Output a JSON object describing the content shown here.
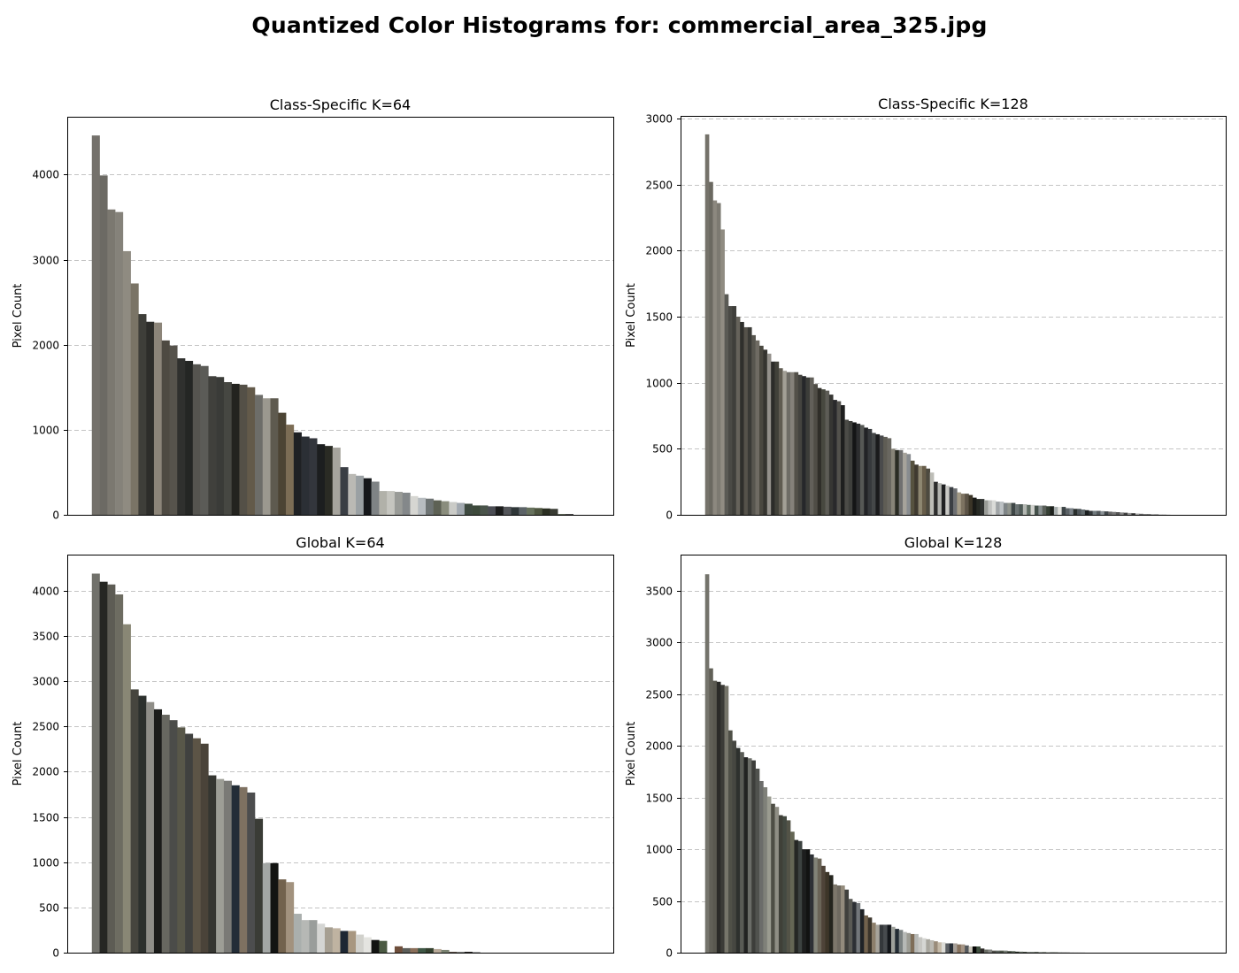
{
  "figure": {
    "title": "Quantized Color Histograms for: commercial_area_325.jpg"
  },
  "chart_data": [
    {
      "type": "bar",
      "title": "Class-Specific K=64",
      "xlabel": "",
      "ylabel": "Pixel Count",
      "ylim": [
        0,
        4680
      ],
      "yticks": [
        0,
        1000,
        2000,
        3000,
        4000
      ],
      "grid": true,
      "values": [
        4460,
        3990,
        3590,
        3560,
        3100,
        2720,
        2360,
        2270,
        2260,
        2050,
        1990,
        1840,
        1810,
        1770,
        1750,
        1630,
        1620,
        1560,
        1540,
        1530,
        1500,
        1410,
        1370,
        1370,
        1200,
        1060,
        970,
        920,
        900,
        830,
        810,
        790,
        560,
        480,
        460,
        430,
        390,
        280,
        280,
        270,
        260,
        220,
        200,
        190,
        170,
        160,
        150,
        140,
        130,
        110,
        110,
        100,
        100,
        95,
        90,
        90,
        85,
        80,
        75,
        70,
        10,
        10,
        0,
        0
      ],
      "colors": [
        "#74716b",
        "#6c6a64",
        "#7b7870",
        "#85827a",
        "#8f8b81",
        "#7a7466",
        "#3e3e39",
        "#2d2d2a",
        "#8c8579",
        "#4e4a42",
        "#56534c",
        "#2f302e",
        "#242624",
        "#55544f",
        "#5b5b57",
        "#40403c",
        "#3a3b38",
        "#464742",
        "#23231f",
        "#545047",
        "#635a4a",
        "#6d6d69",
        "#9b988f",
        "#5e5a4f",
        "#4c4434",
        "#7c6d55",
        "#1f2124",
        "#2b2f35",
        "#33363c",
        "#1c1e1f",
        "#2a2b24",
        "#a6a49d",
        "#3a3e44",
        "#bab9b4",
        "#9aa0a3",
        "#15171a",
        "#7f8385",
        "#b1b1a9",
        "#c5c5bf",
        "#999b97",
        "#84888a",
        "#d6d6d2",
        "#b7bcc0",
        "#6e7474",
        "#5d6154",
        "#8a8d7d",
        "#cacbc7",
        "#a2a9b0",
        "#3e4a40",
        "#3d4a3b",
        "#4a544b",
        "#4b4d54",
        "#1c1d1d",
        "#54565a",
        "#2f3638",
        "#5c6367",
        "#67725d",
        "#4d553f",
        "#2b2f22",
        "#393b33",
        "#5a6252",
        "#444",
        "#555",
        "#666"
      ]
    },
    {
      "type": "bar",
      "title": "Class-Specific K=128",
      "xlabel": "",
      "ylabel": "Pixel Count",
      "ylim": [
        0,
        3020
      ],
      "yticks": [
        0,
        500,
        1000,
        1500,
        2000,
        2500,
        3000
      ],
      "grid": true,
      "values": [
        2880,
        2520,
        2380,
        2360,
        2160,
        1670,
        1580,
        1580,
        1500,
        1460,
        1420,
        1420,
        1360,
        1320,
        1280,
        1250,
        1220,
        1160,
        1160,
        1110,
        1090,
        1080,
        1080,
        1080,
        1060,
        1050,
        1040,
        1040,
        990,
        960,
        950,
        940,
        910,
        870,
        860,
        830,
        720,
        710,
        700,
        690,
        680,
        660,
        650,
        620,
        610,
        600,
        590,
        580,
        500,
        490,
        490,
        470,
        460,
        410,
        380,
        370,
        370,
        350,
        320,
        250,
        240,
        230,
        220,
        210,
        200,
        170,
        160,
        160,
        150,
        130,
        120,
        120,
        110,
        110,
        110,
        100,
        100,
        90,
        90,
        90,
        80,
        80,
        80,
        75,
        75,
        70,
        70,
        70,
        65,
        65,
        60,
        60,
        60,
        50,
        50,
        45,
        45,
        40,
        35,
        30,
        30,
        30,
        28,
        26,
        24,
        22,
        20,
        18,
        16,
        14,
        12,
        10,
        8,
        6,
        5,
        4,
        3,
        2,
        1,
        1,
        0,
        0,
        0,
        0,
        0,
        0,
        0,
        0
      ],
      "colors": [
        "#75726a",
        "#6b6961",
        "#8c887f",
        "#7d7a72",
        "#908c82",
        "#5a5a54",
        "#4a4a45",
        "#3f3f3b",
        "#66635b",
        "#2f2f2c",
        "#55524a",
        "#3a3a36",
        "#58564f",
        "#6f6b63",
        "#49473f",
        "#35342f",
        "#93908a",
        "#2c2c29",
        "#414139",
        "#5f5b51",
        "#a29f96",
        "#6e6c66",
        "#85817a",
        "#535049",
        "#44433f",
        "#26272a",
        "#3c3d39",
        "#62605a",
        "#4f4d46",
        "#2f2e29",
        "#47483f",
        "#5d5c56",
        "#363633",
        "#29292b",
        "#52514c",
        "#1e1f1f",
        "#4b4b47",
        "#3e3f3c",
        "#141516",
        "#2c2d2f",
        "#565855",
        "#222326",
        "#36393c",
        "#444748",
        "#1a1b1c",
        "#4a4b4c",
        "#5f5d55",
        "#696760",
        "#878478",
        "#2a2c24",
        "#707070",
        "#a6a39b",
        "#888c90",
        "#56523f",
        "#3f3a30",
        "#8e8771",
        "#675d4a",
        "#4d4a40",
        "#bdbdb7",
        "#2d2d2d",
        "#b3b4b0",
        "#1f2022",
        "#c9c9c5",
        "#3b3f44",
        "#6d6f72",
        "#a39a86",
        "#7d7361",
        "#5b5346",
        "#3b3527",
        "#191a17",
        "#272a24",
        "#313332",
        "#9a9c98",
        "#c1c2c0",
        "#dadbd8",
        "#a0a4a6",
        "#bcc1c4",
        "#7f8587",
        "#90948d",
        "#3f4747",
        "#6b7373",
        "#4f5a57",
        "#b3b7b2",
        "#5f6c62",
        "#cfd0cc",
        "#44504a",
        "#889090",
        "#595f59",
        "#364035",
        "#1d211d",
        "#a7adad",
        "#e3e3de",
        "#3d4547",
        "#5b6266",
        "#7b8288",
        "#292e2c",
        "#4d5458",
        "#616a6d",
        "#1b1f20",
        "#34393b",
        "#717a7d",
        "#52585b",
        "#8b9296",
        "#3f4548",
        "#666",
        "#777",
        "#555",
        "#888",
        "#444",
        "#999",
        "#333",
        "#aaa",
        "#666",
        "#777",
        "#555",
        "#888",
        "#444",
        "#999",
        "#333",
        "#aaa",
        "#666",
        "#777",
        "#555",
        "#888",
        "#444",
        "#999",
        "#333",
        "#aaa"
      ]
    },
    {
      "type": "bar",
      "title": "Global K=64",
      "xlabel": "",
      "ylabel": "Pixel Count",
      "ylim": [
        0,
        4400
      ],
      "yticks": [
        0,
        500,
        1000,
        1500,
        2000,
        2500,
        3000,
        3500,
        4000
      ],
      "grid": true,
      "values": [
        4190,
        4100,
        4070,
        3960,
        3630,
        2910,
        2840,
        2770,
        2690,
        2630,
        2570,
        2490,
        2420,
        2370,
        2310,
        1960,
        1920,
        1900,
        1850,
        1830,
        1770,
        1480,
        990,
        990,
        810,
        780,
        430,
        360,
        360,
        320,
        280,
        270,
        240,
        240,
        200,
        170,
        140,
        130,
        0,
        70,
        50,
        50,
        50,
        50,
        40,
        30,
        10,
        10,
        10,
        5,
        0,
        0,
        0,
        0,
        0,
        0,
        0,
        0,
        0,
        0,
        0,
        0,
        0,
        0
      ],
      "colors": [
        "#71716b",
        "#262723",
        "#5d5c54",
        "#6d6c61",
        "#898775",
        "#46453e",
        "#2c302d",
        "#8f8e88",
        "#1b1c1a",
        "#676760",
        "#4b4c49",
        "#585749",
        "#40413f",
        "#5c5446",
        "#4a4339",
        "#353631",
        "#9d9e96",
        "#7a7a76",
        "#232d37",
        "#7e7161",
        "#4c4d4e",
        "#3a3c36",
        "#a3a7a5",
        "#121412",
        "#72624d",
        "#a2927e",
        "#aaafad",
        "#b6b8b5",
        "#999d9b",
        "#d4d5d3",
        "#a69f92",
        "#bfb3a1",
        "#1d2733",
        "#a89780",
        "#d1d1cc",
        "#e4e4e0",
        "#121412",
        "#4b5a43",
        "#ffffff",
        "#6e4e3b",
        "#5c5e59",
        "#8a6f5a",
        "#3f5745",
        "#33402e",
        "#b8aa99",
        "#7a8271",
        "#62554d",
        "#8a8b88",
        "#2a2826",
        "#5b5e5f",
        "#ffffff",
        "#ffffff",
        "#ffffff",
        "#ffffff",
        "#ffffff",
        "#ffffff",
        "#ffffff",
        "#ffffff",
        "#ffffff",
        "#ffffff",
        "#ffffff",
        "#ffffff",
        "#ffffff",
        "#ffffff"
      ]
    },
    {
      "type": "bar",
      "title": "Global K=128",
      "xlabel": "",
      "ylabel": "Pixel Count",
      "ylim": [
        0,
        3850
      ],
      "yticks": [
        0,
        500,
        1000,
        1500,
        2000,
        2500,
        3000,
        3500
      ],
      "grid": true,
      "values": [
        3660,
        2750,
        2630,
        2620,
        2590,
        2580,
        2150,
        2050,
        1980,
        1940,
        1890,
        1880,
        1860,
        1780,
        1660,
        1600,
        1510,
        1440,
        1410,
        1330,
        1320,
        1280,
        1170,
        1090,
        1080,
        1000,
        1000,
        950,
        920,
        910,
        840,
        780,
        750,
        660,
        650,
        650,
        610,
        520,
        490,
        480,
        420,
        360,
        340,
        290,
        270,
        270,
        270,
        270,
        250,
        230,
        220,
        200,
        190,
        180,
        180,
        150,
        140,
        130,
        120,
        110,
        100,
        100,
        90,
        90,
        90,
        80,
        80,
        70,
        60,
        60,
        60,
        40,
        30,
        30,
        20,
        20,
        20,
        20,
        15,
        15,
        10,
        10,
        8,
        8,
        6,
        6,
        5,
        5,
        4,
        4,
        3,
        3,
        2,
        2,
        1,
        1,
        1,
        1,
        0,
        0,
        0,
        0,
        0,
        0,
        0,
        0,
        0,
        0,
        0,
        0,
        0,
        0,
        0,
        0,
        0,
        0,
        0,
        0,
        0,
        0,
        0,
        0,
        0,
        0,
        0,
        0,
        0,
        0
      ],
      "colors": [
        "#74736b",
        "#616057",
        "#5a5950",
        "#2b2b28",
        "#3b3b37",
        "#76756a",
        "#4f5047",
        "#464741",
        "#2e312e",
        "#595b55",
        "#222322",
        "#6a6c67",
        "#3d3e3b",
        "#50524e",
        "#6b6c6a",
        "#7f8079",
        "#9a9b90",
        "#4e4e45",
        "#8f8e84",
        "#3f4038",
        "#444a42",
        "#535347",
        "#646654",
        "#252724",
        "#3c4240",
        "#1d1e1e",
        "#121312",
        "#2e3136",
        "#828378",
        "#6a6457",
        "#4e4338",
        "#3d3528",
        "#24241d",
        "#7d776b",
        "#6f6a60",
        "#938b7c",
        "#40403c",
        "#5a5a54",
        "#2d3034",
        "#73777a",
        "#1f2327",
        "#71624d",
        "#3b352b",
        "#8d7f6b",
        "#a7a49b",
        "#34383b",
        "#474b4e",
        "#14171b",
        "#9ea19b",
        "#232c34",
        "#7b8282",
        "#b6b9b6",
        "#9c9c94",
        "#7e6d58",
        "#b6b8b5",
        "#c6c6c2",
        "#d5d6d3",
        "#a8a69e",
        "#bbb9b2",
        "#9a8c7a",
        "#c4b9a7",
        "#dcdcd7",
        "#5d6165",
        "#282f37",
        "#a7a099",
        "#86725e",
        "#a59585",
        "#54585c",
        "#c9c5bb",
        "#040504",
        "#3f4f3f",
        "#2c2927",
        "#6b6e66",
        "#888a86",
        "#52524c",
        "#5d645e",
        "#4c5448",
        "#767d74",
        "#3d463a",
        "#5a6458",
        "#2e352d",
        "#6e786b",
        "#424a3f",
        "#88908a",
        "#596357",
        "#303a2f",
        "#6f7a6e",
        "#4a5346",
        "#8a9489",
        "#5e6a5d",
        "#33402f",
        "#77837a",
        "#444",
        "#555",
        "#666",
        "#777",
        "#888",
        "#999",
        "#aaa",
        "#bbb",
        "#ccc",
        "#ddd",
        "#eee",
        "#fff",
        "#ffffff",
        "#ffffff",
        "#ffffff",
        "#ffffff",
        "#ffffff",
        "#ffffff",
        "#ffffff",
        "#ffffff",
        "#ffffff",
        "#ffffff",
        "#ffffff",
        "#ffffff",
        "#ffffff",
        "#ffffff",
        "#ffffff",
        "#ffffff",
        "#ffffff",
        "#ffffff",
        "#ffffff",
        "#ffffff",
        "#ffffff",
        "#ffffff",
        "#ffffff",
        "#ffffff"
      ]
    }
  ]
}
